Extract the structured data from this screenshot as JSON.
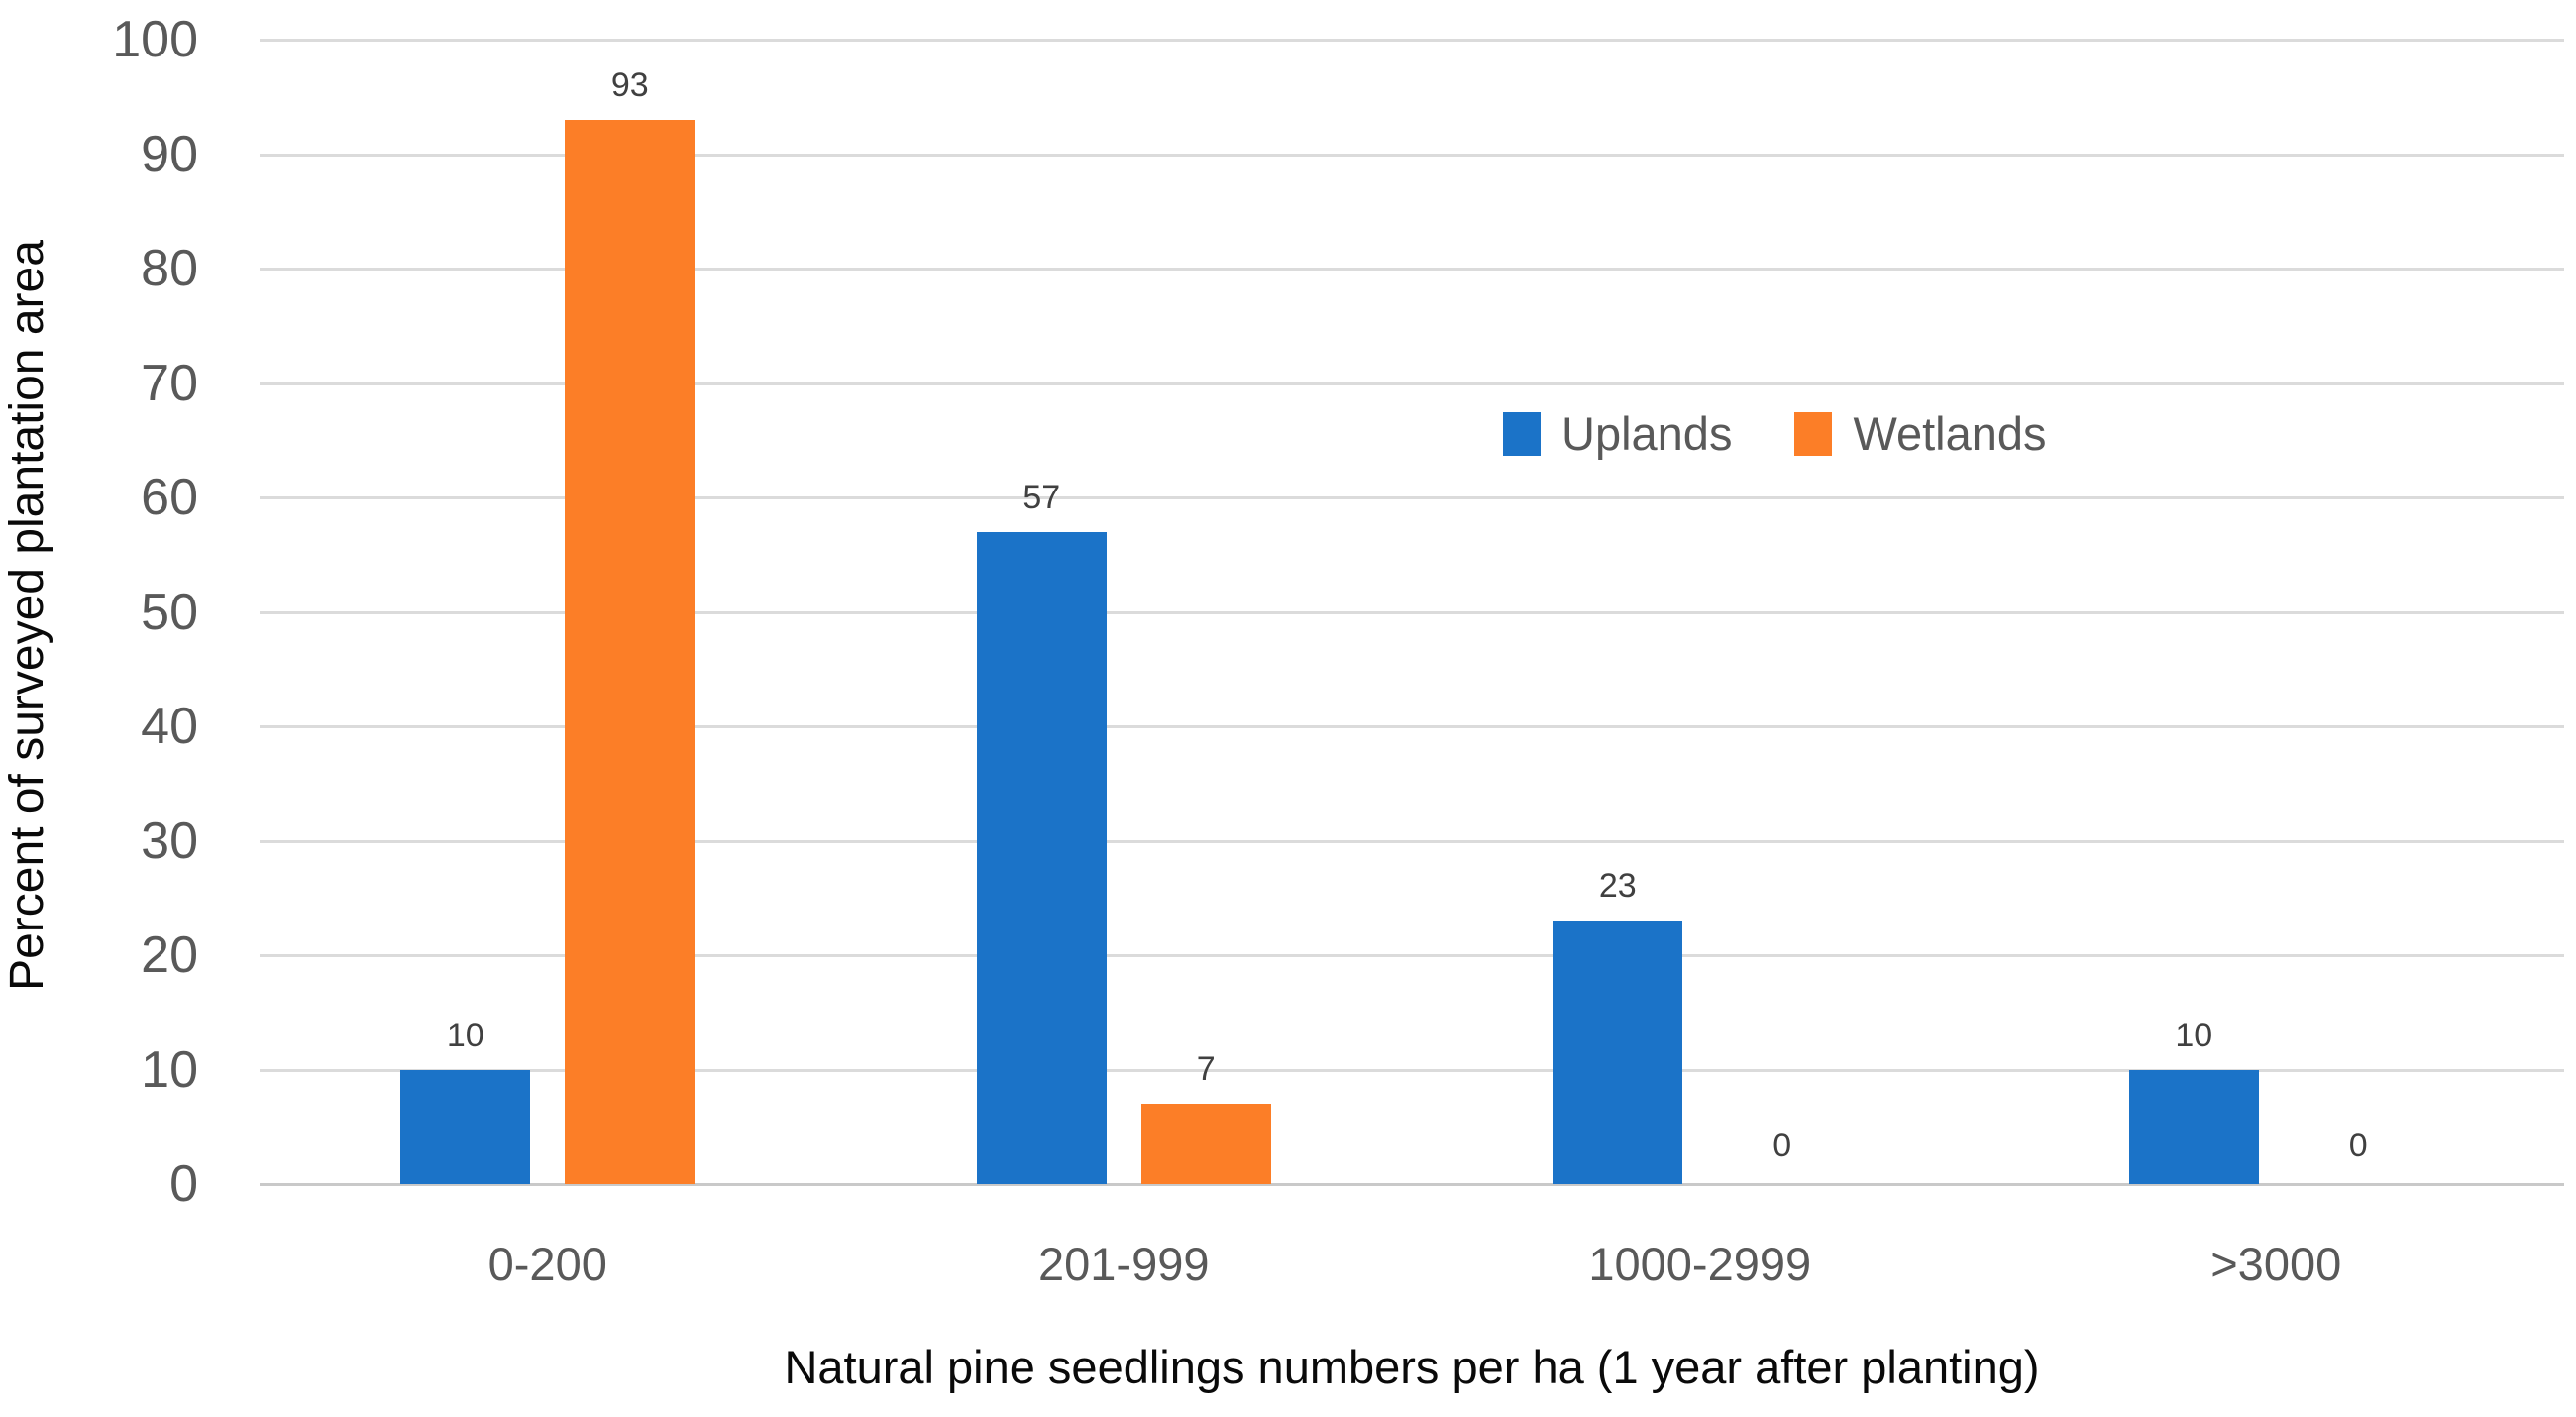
{
  "chart_data": {
    "type": "bar",
    "categories": [
      "0-200",
      "201-999",
      "1000-2999",
      ">3000"
    ],
    "series": [
      {
        "name": "Uplands",
        "color": "#1B73C8",
        "values": [
          10,
          57,
          23,
          10
        ]
      },
      {
        "name": "Wetlands",
        "color": "#FC7E27",
        "values": [
          93,
          7,
          0,
          0
        ]
      }
    ],
    "xlabel": "Natural pine seedlings numbers per ha (1 year after planting)",
    "ylabel": "Percent of surveyed plantation area",
    "ylim": [
      0,
      100
    ],
    "ytick_step": 10,
    "ytick_labels": [
      "0",
      "10",
      "20",
      "30",
      "40",
      "50",
      "60",
      "70",
      "80",
      "90",
      "100"
    ],
    "grid": "horizontal",
    "legend_position": "inside-upper-right",
    "data_labels_shown": true
  },
  "colors": {
    "tick_label": "#595959",
    "data_label": "#404040",
    "axis_title": "#0A0A0A",
    "gridline": "#DBDBDB",
    "axis_line": "#C9C9C9",
    "background": "#FFFFFF"
  }
}
